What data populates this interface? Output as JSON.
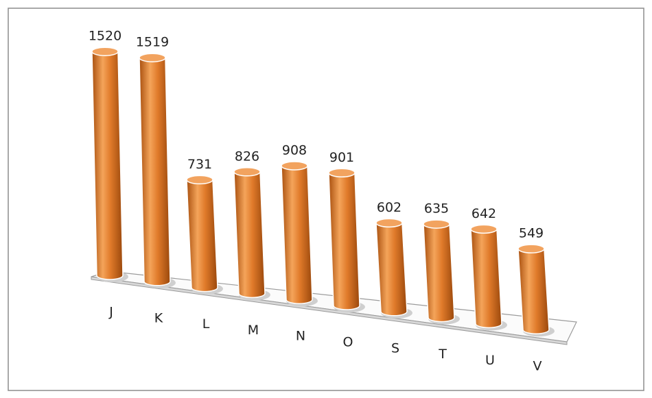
{
  "chart_data": {
    "type": "bar",
    "shape": "cylinder",
    "categories": [
      "J",
      "K",
      "L",
      "M",
      "N",
      "O",
      "S",
      "T",
      "U",
      "V"
    ],
    "values": [
      1520,
      1519,
      731,
      826,
      908,
      901,
      602,
      635,
      642,
      549
    ],
    "color": "#e07a2a"
  }
}
